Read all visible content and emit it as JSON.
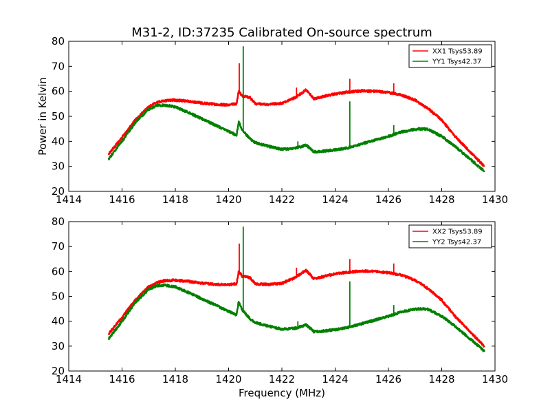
{
  "figure": {
    "title": "M31-2, ID:37235 Calibrated On-source spectrum"
  },
  "chart_data": [
    {
      "type": "line",
      "title": "M31-2, ID:37235 Calibrated On-source spectrum",
      "xlabel": "",
      "ylabel": "Power in Kelvin",
      "xlim": [
        1414,
        1430
      ],
      "ylim": [
        20,
        80
      ],
      "xticks": [
        1414,
        1416,
        1418,
        1420,
        1422,
        1424,
        1426,
        1428,
        1430
      ],
      "yticks": [
        20,
        30,
        40,
        50,
        60,
        70,
        80
      ],
      "grid": false,
      "legend_position": "top-right",
      "series": [
        {
          "name": "XX1 Tsys53.89",
          "color": "#ff0000",
          "x": [
            1415.5,
            1416.0,
            1416.5,
            1417.0,
            1417.3,
            1417.6,
            1418.0,
            1418.5,
            1419.0,
            1419.5,
            1420.0,
            1420.3,
            1420.38,
            1420.45,
            1420.52,
            1420.6,
            1420.8,
            1421.0,
            1421.5,
            1422.0,
            1422.5,
            1422.9,
            1423.0,
            1423.2,
            1423.5,
            1424.0,
            1424.5,
            1425.0,
            1425.5,
            1426.0,
            1426.5,
            1427.0,
            1427.5,
            1428.0,
            1428.5,
            1429.0,
            1429.6
          ],
          "y": [
            35.0,
            41.5,
            48.5,
            53.8,
            55.5,
            56.3,
            56.5,
            56.0,
            55.3,
            54.8,
            54.6,
            55.0,
            60.0,
            59.0,
            58.0,
            58.0,
            57.5,
            55.0,
            54.8,
            55.2,
            57.5,
            60.5,
            59.5,
            57.0,
            57.8,
            59.0,
            59.7,
            60.2,
            60.0,
            59.5,
            58.5,
            56.5,
            53.0,
            48.5,
            42.0,
            36.5,
            30.0
          ]
        },
        {
          "name": "YY1 Tsys42.37",
          "color": "#008000",
          "x": [
            1415.5,
            1416.0,
            1416.5,
            1417.0,
            1417.3,
            1417.6,
            1418.0,
            1418.5,
            1419.0,
            1419.5,
            1420.0,
            1420.3,
            1420.38,
            1420.45,
            1420.52,
            1420.6,
            1420.8,
            1421.0,
            1421.5,
            1422.0,
            1422.5,
            1422.9,
            1423.0,
            1423.2,
            1423.5,
            1424.0,
            1424.5,
            1425.0,
            1425.5,
            1426.0,
            1426.5,
            1427.0,
            1427.3,
            1427.5,
            1428.0,
            1428.5,
            1429.0,
            1429.6
          ],
          "y": [
            33.0,
            40.0,
            47.5,
            52.8,
            54.3,
            54.5,
            53.8,
            51.5,
            49.0,
            46.5,
            44.0,
            42.5,
            48.0,
            46.0,
            44.5,
            43.5,
            41.0,
            39.5,
            38.0,
            36.8,
            37.2,
            38.5,
            37.8,
            35.8,
            36.0,
            36.6,
            37.5,
            39.0,
            40.5,
            42.0,
            43.8,
            44.8,
            45.0,
            44.7,
            42.0,
            38.0,
            33.5,
            28.0
          ]
        }
      ],
      "spikes": [
        {
          "series": "XX1 Tsys53.89",
          "x": 1420.4,
          "y": 71.2
        },
        {
          "series": "XX1 Tsys53.89",
          "x": 1422.55,
          "y": 61.5
        },
        {
          "series": "XX1 Tsys53.89",
          "x": 1424.55,
          "y": 65.0
        },
        {
          "series": "XX1 Tsys53.89",
          "x": 1426.2,
          "y": 63.2
        },
        {
          "series": "YY1 Tsys42.37",
          "x": 1420.55,
          "y": 78.0
        },
        {
          "series": "YY1 Tsys42.37",
          "x": 1422.6,
          "y": 40.0
        },
        {
          "series": "YY1 Tsys42.37",
          "x": 1424.55,
          "y": 56.0
        },
        {
          "series": "YY1 Tsys42.37",
          "x": 1426.2,
          "y": 46.5
        }
      ]
    },
    {
      "type": "line",
      "title": "",
      "xlabel": "Frequency (MHz)",
      "ylabel": "",
      "xlim": [
        1414,
        1430
      ],
      "ylim": [
        20,
        80
      ],
      "xticks": [
        1414,
        1416,
        1418,
        1420,
        1422,
        1424,
        1426,
        1428,
        1430
      ],
      "yticks": [
        20,
        30,
        40,
        50,
        60,
        70,
        80
      ],
      "grid": false,
      "legend_position": "top-right",
      "series": [
        {
          "name": "XX2 Tsys53.89",
          "color": "#ff0000",
          "x": [
            1415.5,
            1416.0,
            1416.5,
            1417.0,
            1417.3,
            1417.6,
            1418.0,
            1418.5,
            1419.0,
            1419.5,
            1420.0,
            1420.3,
            1420.38,
            1420.45,
            1420.52,
            1420.6,
            1420.8,
            1421.0,
            1421.5,
            1422.0,
            1422.5,
            1422.9,
            1423.0,
            1423.2,
            1423.5,
            1424.0,
            1424.5,
            1425.0,
            1425.5,
            1426.0,
            1426.5,
            1427.0,
            1427.5,
            1428.0,
            1428.5,
            1429.0,
            1429.6
          ],
          "y": [
            35.0,
            41.5,
            48.5,
            53.8,
            55.5,
            56.3,
            56.5,
            56.0,
            55.3,
            54.8,
            54.6,
            55.0,
            60.0,
            59.0,
            58.0,
            58.0,
            57.5,
            55.0,
            54.8,
            55.2,
            57.5,
            60.5,
            59.5,
            57.0,
            57.8,
            59.0,
            59.7,
            60.2,
            60.0,
            59.5,
            58.5,
            56.5,
            53.0,
            48.5,
            42.0,
            36.5,
            30.0
          ]
        },
        {
          "name": "YY2 Tsys42.37",
          "color": "#008000",
          "x": [
            1415.5,
            1416.0,
            1416.5,
            1417.0,
            1417.3,
            1417.6,
            1418.0,
            1418.5,
            1419.0,
            1419.5,
            1420.0,
            1420.3,
            1420.38,
            1420.45,
            1420.52,
            1420.6,
            1420.8,
            1421.0,
            1421.5,
            1422.0,
            1422.5,
            1422.9,
            1423.0,
            1423.2,
            1423.5,
            1424.0,
            1424.5,
            1425.0,
            1425.5,
            1426.0,
            1426.5,
            1427.0,
            1427.3,
            1427.5,
            1428.0,
            1428.5,
            1429.0,
            1429.6
          ],
          "y": [
            33.0,
            40.0,
            47.5,
            52.8,
            54.3,
            54.5,
            53.8,
            51.5,
            49.0,
            46.5,
            44.0,
            42.5,
            48.0,
            46.0,
            44.5,
            43.5,
            41.0,
            39.5,
            38.0,
            36.8,
            37.2,
            38.5,
            37.8,
            35.8,
            36.0,
            36.6,
            37.5,
            39.0,
            40.5,
            42.0,
            43.8,
            44.8,
            45.0,
            44.7,
            42.0,
            38.0,
            33.5,
            28.0
          ]
        }
      ],
      "spikes": [
        {
          "series": "XX2 Tsys53.89",
          "x": 1420.4,
          "y": 71.2
        },
        {
          "series": "XX2 Tsys53.89",
          "x": 1422.55,
          "y": 61.5
        },
        {
          "series": "XX2 Tsys53.89",
          "x": 1424.55,
          "y": 65.0
        },
        {
          "series": "XX2 Tsys53.89",
          "x": 1426.2,
          "y": 63.2
        },
        {
          "series": "YY2 Tsys42.37",
          "x": 1420.55,
          "y": 78.0
        },
        {
          "series": "YY2 Tsys42.37",
          "x": 1422.6,
          "y": 40.0
        },
        {
          "series": "YY2 Tsys42.37",
          "x": 1424.55,
          "y": 56.0
        },
        {
          "series": "YY2 Tsys42.37",
          "x": 1426.2,
          "y": 46.5
        }
      ]
    }
  ]
}
